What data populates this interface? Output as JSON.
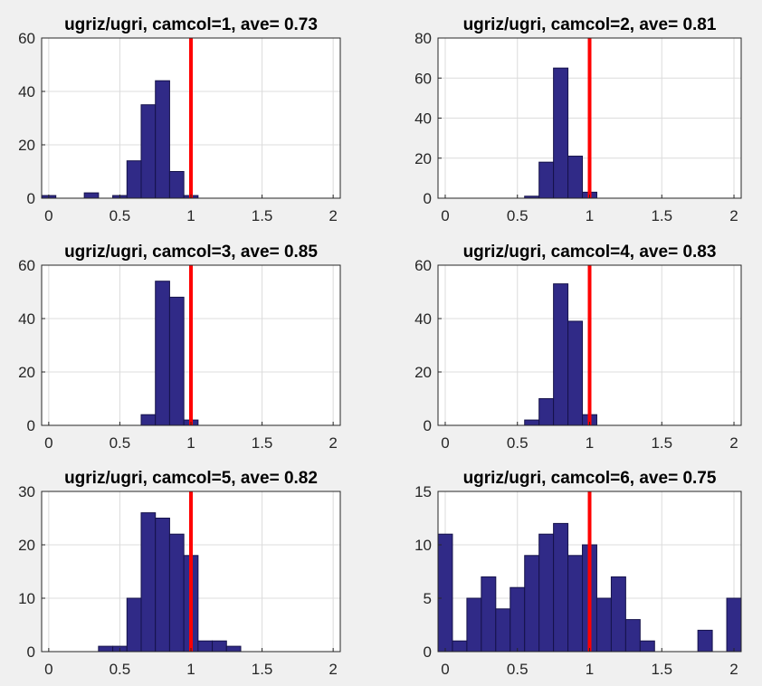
{
  "chart_data": [
    {
      "type": "bar",
      "title": "ugriz/ugri, camcol=1, ave= 0.73",
      "xlim": [
        -0.05,
        2.05
      ],
      "ylim": [
        0,
        60
      ],
      "xticks": [
        "0",
        "0.5",
        "1",
        "1.5",
        "2"
      ],
      "yticks": [
        "0",
        "20",
        "40",
        "60"
      ],
      "bin_width": 0.1,
      "bin_starts": [
        -0.05,
        0.25,
        0.45,
        0.55,
        0.65,
        0.75,
        0.85,
        0.95
      ],
      "values": [
        1,
        2,
        1,
        14,
        35,
        44,
        10,
        1
      ],
      "reference_line_x": 1,
      "grid": true,
      "color": "#302a87"
    },
    {
      "type": "bar",
      "title": "ugriz/ugri, camcol=2, ave= 0.81",
      "xlim": [
        -0.05,
        2.05
      ],
      "ylim": [
        0,
        80
      ],
      "xticks": [
        "0",
        "0.5",
        "1",
        "1.5",
        "2"
      ],
      "yticks": [
        "0",
        "20",
        "40",
        "60",
        "80"
      ],
      "bin_width": 0.1,
      "bin_starts": [
        0.55,
        0.65,
        0.75,
        0.85,
        0.95
      ],
      "values": [
        1,
        18,
        65,
        21,
        3
      ],
      "reference_line_x": 1,
      "grid": true,
      "color": "#302a87"
    },
    {
      "type": "bar",
      "title": "ugriz/ugri, camcol=3, ave= 0.85",
      "xlim": [
        -0.05,
        2.05
      ],
      "ylim": [
        0,
        60
      ],
      "xticks": [
        "0",
        "0.5",
        "1",
        "1.5",
        "2"
      ],
      "yticks": [
        "0",
        "20",
        "40",
        "60"
      ],
      "bin_width": 0.1,
      "bin_starts": [
        0.65,
        0.75,
        0.85,
        0.95
      ],
      "values": [
        4,
        54,
        48,
        2
      ],
      "reference_line_x": 1,
      "grid": true,
      "color": "#302a87"
    },
    {
      "type": "bar",
      "title": "ugriz/ugri, camcol=4, ave= 0.83",
      "xlim": [
        -0.05,
        2.05
      ],
      "ylim": [
        0,
        60
      ],
      "xticks": [
        "0",
        "0.5",
        "1",
        "1.5",
        "2"
      ],
      "yticks": [
        "0",
        "20",
        "40",
        "60"
      ],
      "bin_width": 0.1,
      "bin_starts": [
        0.55,
        0.65,
        0.75,
        0.85,
        0.95
      ],
      "values": [
        2,
        10,
        53,
        39,
        4
      ],
      "reference_line_x": 1,
      "grid": true,
      "color": "#302a87"
    },
    {
      "type": "bar",
      "title": "ugriz/ugri, camcol=5, ave= 0.82",
      "xlim": [
        -0.05,
        2.05
      ],
      "ylim": [
        0,
        30
      ],
      "xticks": [
        "0",
        "0.5",
        "1",
        "1.5",
        "2"
      ],
      "yticks": [
        "0",
        "10",
        "20",
        "30"
      ],
      "bin_width": 0.1,
      "bin_starts": [
        0.35,
        0.45,
        0.55,
        0.65,
        0.75,
        0.85,
        0.95,
        1.05,
        1.15,
        1.25
      ],
      "values": [
        1,
        1,
        10,
        26,
        25,
        22,
        18,
        2,
        2,
        1
      ],
      "reference_line_x": 1,
      "grid": true,
      "color": "#302a87"
    },
    {
      "type": "bar",
      "title": "ugriz/ugri, camcol=6, ave= 0.75",
      "xlim": [
        -0.05,
        2.05
      ],
      "ylim": [
        0,
        15
      ],
      "xticks": [
        "0",
        "0.5",
        "1",
        "1.5",
        "2"
      ],
      "yticks": [
        "0",
        "5",
        "10",
        "15"
      ],
      "bin_width": 0.1,
      "bin_starts": [
        -0.05,
        0.05,
        0.15,
        0.25,
        0.35,
        0.45,
        0.55,
        0.65,
        0.75,
        0.85,
        0.95,
        1.05,
        1.15,
        1.25,
        1.35,
        1.75,
        1.95
      ],
      "values": [
        11,
        1,
        5,
        7,
        4,
        6,
        9,
        11,
        12,
        9,
        10,
        5,
        7,
        3,
        1,
        2,
        5
      ],
      "reference_line_x": 1,
      "grid": true,
      "color": "#302a87"
    }
  ]
}
